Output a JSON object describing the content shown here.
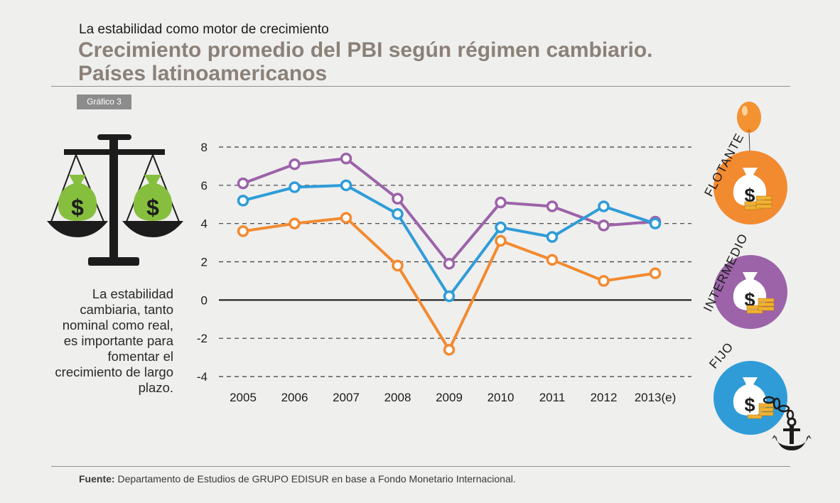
{
  "header": {
    "kicker": "La estabilidad como motor de crecimiento",
    "title_line1": "Crecimiento promedio del PBI según régimen cambiario.",
    "title_line2": "Países latinoamericanos",
    "badge": "Gráfico 3"
  },
  "note": "La estabilidad cambiaria, tanto nominal como real, es importante para fomentar el crecimiento de largo plazo.",
  "footer": {
    "source_label": "Fuente:",
    "source_text": " Departamento de Estudios de GRUPO EDISUR en base a Fondo Monetario Internacional."
  },
  "icons": {
    "scale": "balance-scale-icon",
    "money_bag": "money-bag-icon",
    "balloon": "balloon-icon",
    "coins": "coin-stack-icon",
    "chain": "chain-icon",
    "anchor": "anchor-icon"
  },
  "regimes": [
    {
      "label": "FLOTANTE",
      "color": "#f28a30"
    },
    {
      "label": "INTERMEDIO",
      "color": "#9c63a8"
    },
    {
      "label": "FIJO",
      "color": "#2f9cd8"
    }
  ],
  "chart_data": {
    "type": "line",
    "categories": [
      "2005",
      "2006",
      "2007",
      "2008",
      "2009",
      "2010",
      "2011",
      "2012",
      "2013(e)"
    ],
    "ylim": [
      -4,
      8
    ],
    "yticks": [
      8,
      6,
      4,
      2,
      0,
      -2,
      -4
    ],
    "ytick_labels": [
      "8",
      "6",
      "4",
      "2",
      "0",
      "-2",
      "-4"
    ],
    "grid": "dashed horizontal",
    "legend": "icons on the right",
    "series": [
      {
        "key": "intermedio",
        "color": "#9c63a8",
        "values": [
          6.1,
          7.1,
          7.4,
          5.3,
          1.9,
          5.1,
          4.9,
          3.9,
          4.1
        ]
      },
      {
        "key": "fijo",
        "color": "#2f9cd8",
        "values": [
          5.2,
          5.9,
          6.0,
          4.5,
          0.2,
          3.8,
          3.3,
          4.9,
          4.0
        ]
      },
      {
        "key": "flotante",
        "color": "#f28a30",
        "values": [
          3.6,
          4.0,
          4.3,
          1.8,
          -2.6,
          3.1,
          2.1,
          1.0,
          1.4
        ]
      }
    ]
  }
}
